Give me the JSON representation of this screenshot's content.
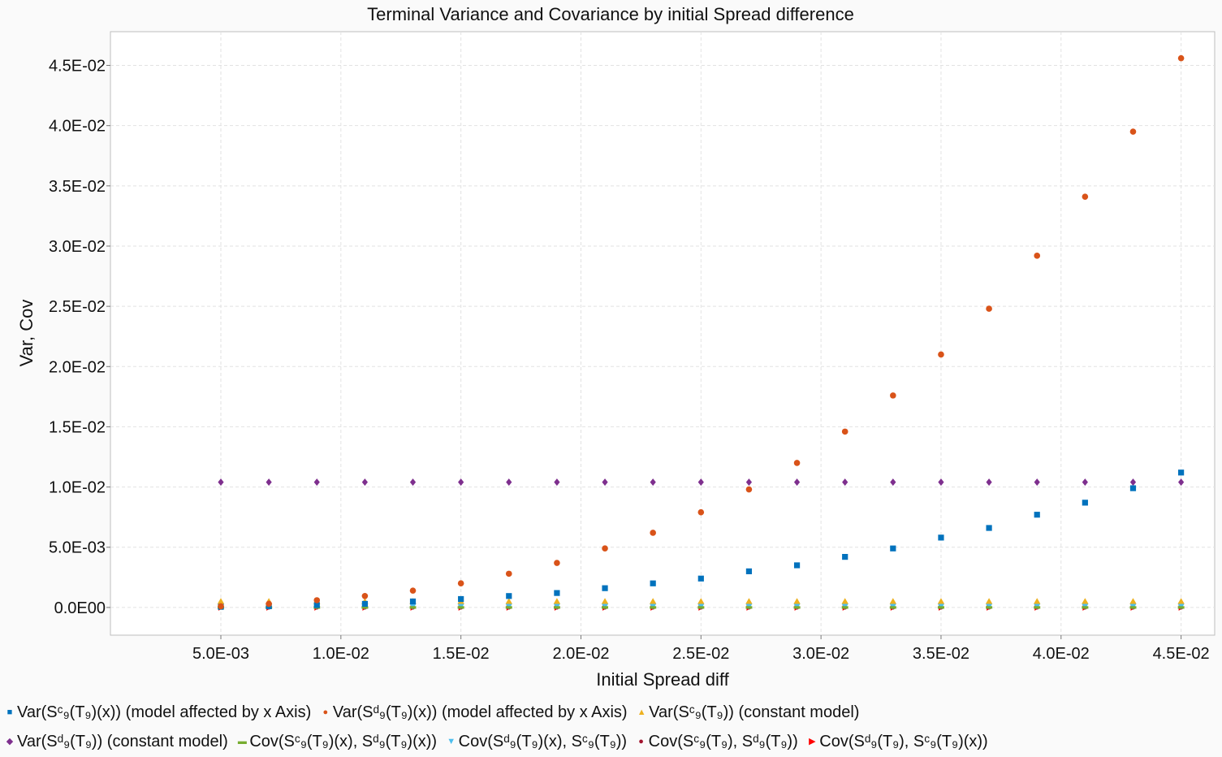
{
  "chart_data": {
    "type": "scatter",
    "title": "Terminal Variance and Covariance by initial Spread difference",
    "xlabel": "Initial Spread diff",
    "ylabel": "Var, Cov",
    "xlim": [
      0.0004,
      0.0464
    ],
    "ylim": [
      -0.0023,
      0.0478
    ],
    "x_ticks": [
      "5.0E-03",
      "1.0E-02",
      "1.5E-02",
      "2.0E-02",
      "2.5E-02",
      "3.0E-02",
      "3.5E-02",
      "4.0E-02",
      "4.5E-02"
    ],
    "x_tick_values": [
      0.005,
      0.01,
      0.015,
      0.02,
      0.025,
      0.03,
      0.035,
      0.04,
      0.045
    ],
    "y_ticks": [
      "0.0E00",
      "5.0E-03",
      "1.0E-02",
      "1.5E-02",
      "2.0E-02",
      "2.5E-02",
      "3.0E-02",
      "3.5E-02",
      "4.0E-02",
      "4.5E-02"
    ],
    "y_tick_values": [
      0,
      0.005,
      0.01,
      0.015,
      0.02,
      0.025,
      0.03,
      0.035,
      0.04,
      0.045
    ],
    "grid": true,
    "legend_position": "bottom",
    "x": [
      0.005,
      0.007,
      0.009,
      0.011,
      0.013,
      0.015,
      0.017,
      0.019,
      0.021,
      0.023,
      0.025,
      0.027,
      0.029,
      0.031,
      0.033,
      0.035,
      0.037,
      0.039,
      0.041,
      0.043,
      0.045
    ],
    "series": [
      {
        "name": "Var(Sᶜ₉(T₉)(x)) (model affected by x Axis)",
        "color": "#0072bd",
        "marker": "square",
        "values": [
          5e-05,
          0.0001,
          0.0002,
          0.0003,
          0.0005,
          0.0007,
          0.00095,
          0.0012,
          0.0016,
          0.002,
          0.0024,
          0.003,
          0.0035,
          0.0042,
          0.0049,
          0.0058,
          0.0066,
          0.0077,
          0.0087,
          0.0099,
          0.0112
        ]
      },
      {
        "name": "Var(Sᵈ₉(T₉)(x)) (model affected by x Axis)",
        "color": "#d95319",
        "marker": "circle",
        "values": [
          0.0001,
          0.0003,
          0.0006,
          0.00095,
          0.0014,
          0.002,
          0.0028,
          0.0037,
          0.0049,
          0.0062,
          0.0079,
          0.0098,
          0.012,
          0.0146,
          0.0176,
          0.021,
          0.0248,
          0.0292,
          0.0341,
          0.0395,
          0.0456
        ]
      },
      {
        "name": "Var(Sᶜ₉(T₉)) (constant model)",
        "color": "#edb120",
        "marker": "triangle-up",
        "values": [
          0.0005,
          0.0005,
          0.0005,
          0.0005,
          0.0005,
          0.0005,
          0.0005,
          0.0005,
          0.0005,
          0.0005,
          0.0005,
          0.0005,
          0.0005,
          0.0005,
          0.0005,
          0.0005,
          0.0005,
          0.0005,
          0.0005,
          0.0005,
          0.0005
        ]
      },
      {
        "name": "Var(Sᵈ₉(T₉)) (constant model)",
        "color": "#7e2f8e",
        "marker": "diamond",
        "values": [
          0.0104,
          0.0104,
          0.0104,
          0.0104,
          0.0104,
          0.0104,
          0.0104,
          0.0104,
          0.0104,
          0.0104,
          0.0104,
          0.0104,
          0.0104,
          0.0104,
          0.0104,
          0.0104,
          0.0104,
          0.0104,
          0.0104,
          0.0104,
          0.0104
        ]
      },
      {
        "name": "Cov(Sᶜ₉(T₉)(x), Sᵈ₉(T₉)(x))",
        "color": "#77ac30",
        "marker": "dash",
        "values": [
          0,
          0,
          0,
          0,
          0,
          0,
          0,
          0,
          0,
          0,
          0,
          0,
          0,
          0,
          0,
          0,
          0,
          0,
          0,
          0,
          0
        ]
      },
      {
        "name": "Cov(Sᵈ₉(T₉)(x), Sᶜ₉(T₉))",
        "color": "#4dbeee",
        "marker": "triangle-down",
        "values": [
          0.0001,
          0.0001,
          0.0001,
          0.0001,
          0.0001,
          0.0001,
          0.0001,
          0.0001,
          0.0001,
          0.0001,
          0.0001,
          0.0001,
          0.0001,
          0.0001,
          0.0001,
          0.0001,
          0.0001,
          0.0001,
          0.0001,
          0.0001,
          0.0001
        ]
      },
      {
        "name": "Cov(Sᶜ₉(T₉), Sᵈ₉(T₉))",
        "color": "#a2142f",
        "marker": "small-circle",
        "values": [
          0,
          0,
          0,
          0,
          0,
          0,
          0,
          0,
          0,
          0,
          0,
          0,
          0,
          0,
          0,
          0,
          0,
          0,
          0,
          0,
          0
        ]
      },
      {
        "name": "Cov(Sᵈ₉(T₉), Sᶜ₉(T₉)(x))",
        "color": "#ff0000",
        "marker": "triangle-right",
        "values": [
          0,
          0,
          0,
          0,
          0,
          0,
          0,
          0,
          0,
          0,
          0,
          0,
          0,
          0,
          0,
          0,
          0,
          0,
          0,
          0,
          0
        ]
      }
    ]
  }
}
